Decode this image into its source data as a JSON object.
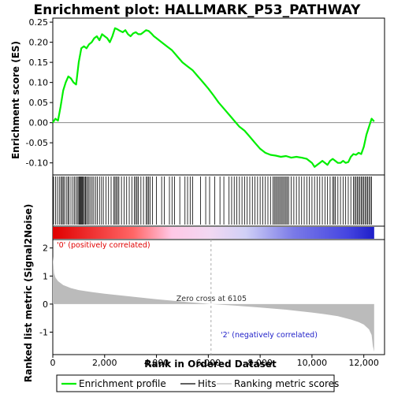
{
  "chart_data": {
    "type": "line",
    "title": "Enrichment plot: HALLMARK_P53_PATHWAY",
    "es_panel": {
      "ylabel": "Enrichment score (ES)",
      "ylim": [
        -0.13,
        0.26
      ],
      "yticks": [
        -0.1,
        -0.05,
        0.0,
        0.05,
        0.1,
        0.15,
        0.2,
        0.25
      ],
      "ytick_labels": [
        "-0.10",
        "-0.05",
        "0.00",
        "0.05",
        "0.10",
        "0.15",
        "0.20",
        "0.25"
      ],
      "color": "#00ee00",
      "x": [
        0,
        100,
        200,
        300,
        400,
        500,
        600,
        700,
        800,
        900,
        1000,
        1100,
        1200,
        1300,
        1400,
        1500,
        1600,
        1700,
        1800,
        1900,
        2000,
        2100,
        2200,
        2300,
        2400,
        2500,
        2600,
        2700,
        2800,
        2900,
        3000,
        3100,
        3200,
        3300,
        3400,
        3500,
        3600,
        3700,
        3800,
        3900,
        4000,
        4200,
        4400,
        4600,
        4800,
        5000,
        5200,
        5400,
        5600,
        5800,
        6000,
        6200,
        6400,
        6600,
        6800,
        7000,
        7200,
        7400,
        7600,
        7800,
        8000,
        8200,
        8400,
        8600,
        8800,
        9000,
        9200,
        9400,
        9600,
        9800,
        10000,
        10100,
        10200,
        10300,
        10400,
        10500,
        10600,
        10700,
        10800,
        10900,
        11000,
        11100,
        11200,
        11300,
        11400,
        11500,
        11600,
        11700,
        11800,
        11900,
        12000,
        12100,
        12200,
        12300,
        12400
      ],
      "y": [
        0.0,
        0.01,
        0.005,
        0.04,
        0.08,
        0.1,
        0.115,
        0.11,
        0.1,
        0.095,
        0.15,
        0.185,
        0.19,
        0.185,
        0.195,
        0.2,
        0.21,
        0.215,
        0.205,
        0.22,
        0.215,
        0.21,
        0.2,
        0.215,
        0.235,
        0.232,
        0.228,
        0.225,
        0.23,
        0.22,
        0.215,
        0.222,
        0.225,
        0.22,
        0.22,
        0.225,
        0.23,
        0.228,
        0.222,
        0.215,
        0.21,
        0.2,
        0.19,
        0.18,
        0.165,
        0.15,
        0.14,
        0.13,
        0.115,
        0.1,
        0.085,
        0.068,
        0.05,
        0.035,
        0.02,
        0.005,
        -0.01,
        -0.02,
        -0.035,
        -0.05,
        -0.065,
        -0.075,
        -0.08,
        -0.082,
        -0.085,
        -0.083,
        -0.087,
        -0.085,
        -0.087,
        -0.09,
        -0.1,
        -0.11,
        -0.105,
        -0.1,
        -0.095,
        -0.1,
        -0.105,
        -0.095,
        -0.09,
        -0.095,
        -0.1,
        -0.1,
        -0.095,
        -0.1,
        -0.098,
        -0.085,
        -0.078,
        -0.08,
        -0.075,
        -0.078,
        -0.06,
        -0.03,
        -0.01,
        0.01,
        0.003
      ]
    },
    "hits": [
      30,
      110,
      180,
      250,
      310,
      360,
      400,
      450,
      520,
      580,
      620,
      700,
      780,
      840,
      900,
      950,
      1000,
      1030,
      1060,
      1090,
      1120,
      1150,
      1180,
      1220,
      1260,
      1300,
      1350,
      1400,
      1460,
      1520,
      1580,
      1650,
      1720,
      1800,
      1880,
      1950,
      2050,
      2150,
      2250,
      2350,
      2400,
      2450,
      2500,
      2550,
      2650,
      2750,
      2850,
      2950,
      3050,
      3150,
      3200,
      3250,
      3300,
      3400,
      3500,
      3600,
      3650,
      3700,
      3750,
      3850,
      4000,
      4200,
      4300,
      4500,
      4600,
      4700,
      4900,
      5100,
      5200,
      5300,
      5400,
      5700,
      5900,
      6050,
      6250,
      6450,
      6600,
      6800,
      6900,
      7000,
      7100,
      7200,
      7300,
      7400,
      7500,
      7600,
      7700,
      7800,
      7900,
      8000,
      8100,
      8200,
      8300,
      8400,
      8500,
      8550,
      8600,
      8650,
      8700,
      8750,
      8800,
      8850,
      8900,
      8950,
      9000,
      9050,
      9100,
      9200,
      9300,
      9400,
      9500,
      9600,
      9700,
      9800,
      9900,
      10000,
      10100,
      10200,
      10300,
      10400,
      10500,
      10600,
      10700,
      10800,
      10850,
      10900,
      11000,
      11100,
      11200,
      11300,
      11400,
      11500,
      11600,
      11650,
      11700,
      11750,
      11800,
      11850,
      11900,
      11950,
      12000,
      12050,
      12100,
      12150,
      12200,
      12250,
      12300
    ],
    "metric_panel": {
      "ylabel": "Ranked list metric (Signal2Noise)",
      "ylim": [
        -1.8,
        2.3
      ],
      "yticks": [
        -1,
        0,
        1,
        2
      ],
      "ytick_labels": [
        "-1",
        "0",
        "1",
        "2"
      ],
      "x": [
        0,
        50,
        100,
        200,
        400,
        700,
        1000,
        1500,
        2000,
        3000,
        4000,
        5000,
        6105,
        7000,
        8000,
        9000,
        10000,
        10500,
        11000,
        11500,
        11800,
        12000,
        12200,
        12300,
        12350,
        12400
      ],
      "y": [
        1.7,
        1.1,
        0.95,
        0.82,
        0.68,
        0.57,
        0.5,
        0.43,
        0.37,
        0.27,
        0.17,
        0.09,
        0.0,
        -0.05,
        -0.12,
        -0.2,
        -0.3,
        -0.36,
        -0.43,
        -0.55,
        -0.64,
        -0.73,
        -0.9,
        -1.1,
        -1.5,
        -1.7
      ],
      "zero_cross_label": "Zero cross at 6105",
      "zero_cross": 6105,
      "pos_label": "'0' (positively correlated)",
      "neg_label": "'2' (negatively correlated)",
      "pos_color": "#e00000",
      "neg_color": "#1e1ec8"
    },
    "xaxis": {
      "xlabel": "Rank in Ordered Dataset",
      "xlim": [
        0,
        12800
      ],
      "data_max": 12400,
      "xticks": [
        0,
        2000,
        4000,
        6000,
        8000,
        10000,
        12000
      ],
      "xtick_labels": [
        "0",
        "2,000",
        "4,000",
        "6,000",
        "8,000",
        "10,000",
        "12,000"
      ]
    },
    "legend": {
      "placement": "bottom",
      "items": [
        {
          "label": "Enrichment profile",
          "color": "#00ee00"
        },
        {
          "label": "Hits",
          "color": "#000000"
        },
        {
          "label": "Ranking metric scores",
          "color": "#bbbbbb"
        }
      ]
    }
  }
}
